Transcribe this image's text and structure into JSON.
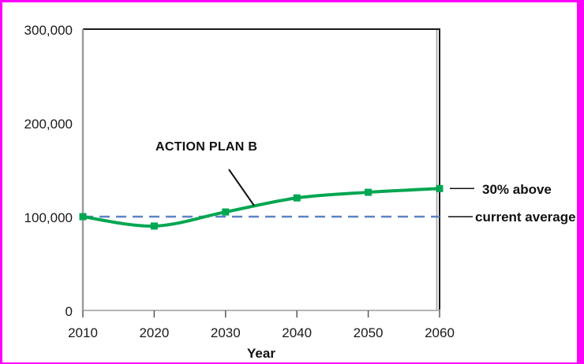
{
  "frame": {
    "border_color": "#FF00FF",
    "background": "#FFFFFF"
  },
  "chart_data": {
    "type": "line",
    "title": "",
    "xlabel": "Year",
    "ylabel": "",
    "x": [
      2010,
      2020,
      2030,
      2040,
      2050,
      2060
    ],
    "xtick_labels": [
      "2010",
      "2020",
      "2030",
      "2040",
      "2050",
      "2060"
    ],
    "ylim": [
      0,
      300000
    ],
    "yticks": [
      0,
      100000,
      200000,
      300000
    ],
    "ytick_labels": [
      "0",
      "100,000",
      "200,000",
      "300,000"
    ],
    "grid": false,
    "legend_position": "none",
    "series": [
      {
        "name": "ACTION PLAN B",
        "values": [
          100000,
          90000,
          105000,
          120000,
          126000,
          130000
        ],
        "color": "#00A651",
        "marker": "square",
        "smooth": true
      }
    ],
    "reference_line": {
      "value": 100000,
      "label": "current average",
      "style": "dashed",
      "color": "#5B83C4"
    },
    "annotations": {
      "action_plan": {
        "text": "ACTION PLAN B"
      },
      "above": {
        "text": "30% above"
      },
      "current": {
        "text": "current average"
      }
    },
    "axis_colors": {
      "plot_border": "#1a1a1a",
      "axis_gray": "#9c9c9c",
      "axis_bottom": "#b4b4b4",
      "tick_mark": "#5a5a5a"
    }
  }
}
